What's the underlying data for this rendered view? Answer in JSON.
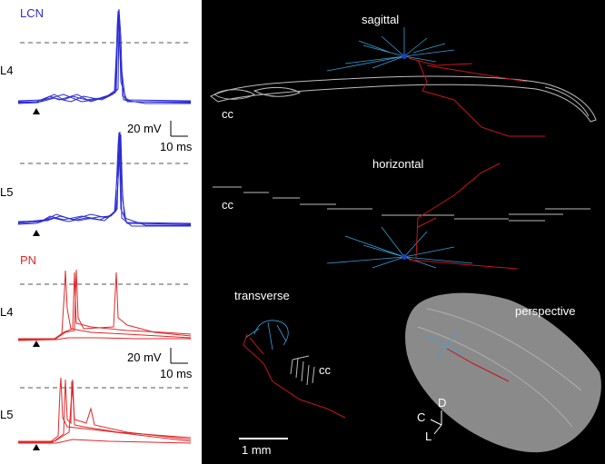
{
  "traces": {
    "lcn": {
      "label": "LCN",
      "layers": [
        "L4",
        "L5"
      ],
      "scale": {
        "voltage": "20 mV",
        "time": "10 ms"
      }
    },
    "pn": {
      "label": "PN",
      "layers": [
        "L4",
        "L5"
      ],
      "scale": {
        "voltage": "20 mV",
        "time": "10 ms"
      }
    }
  },
  "views": {
    "sagittal": {
      "title": "sagittal",
      "cc": "cc"
    },
    "horizontal": {
      "title": "horizontal",
      "cc": "cc"
    },
    "transverse": {
      "title": "transverse",
      "cc": "cc"
    },
    "perspective": {
      "title": "perspective",
      "axes": [
        "D",
        "C",
        "L"
      ]
    },
    "scale_bar": "1 mm"
  }
}
